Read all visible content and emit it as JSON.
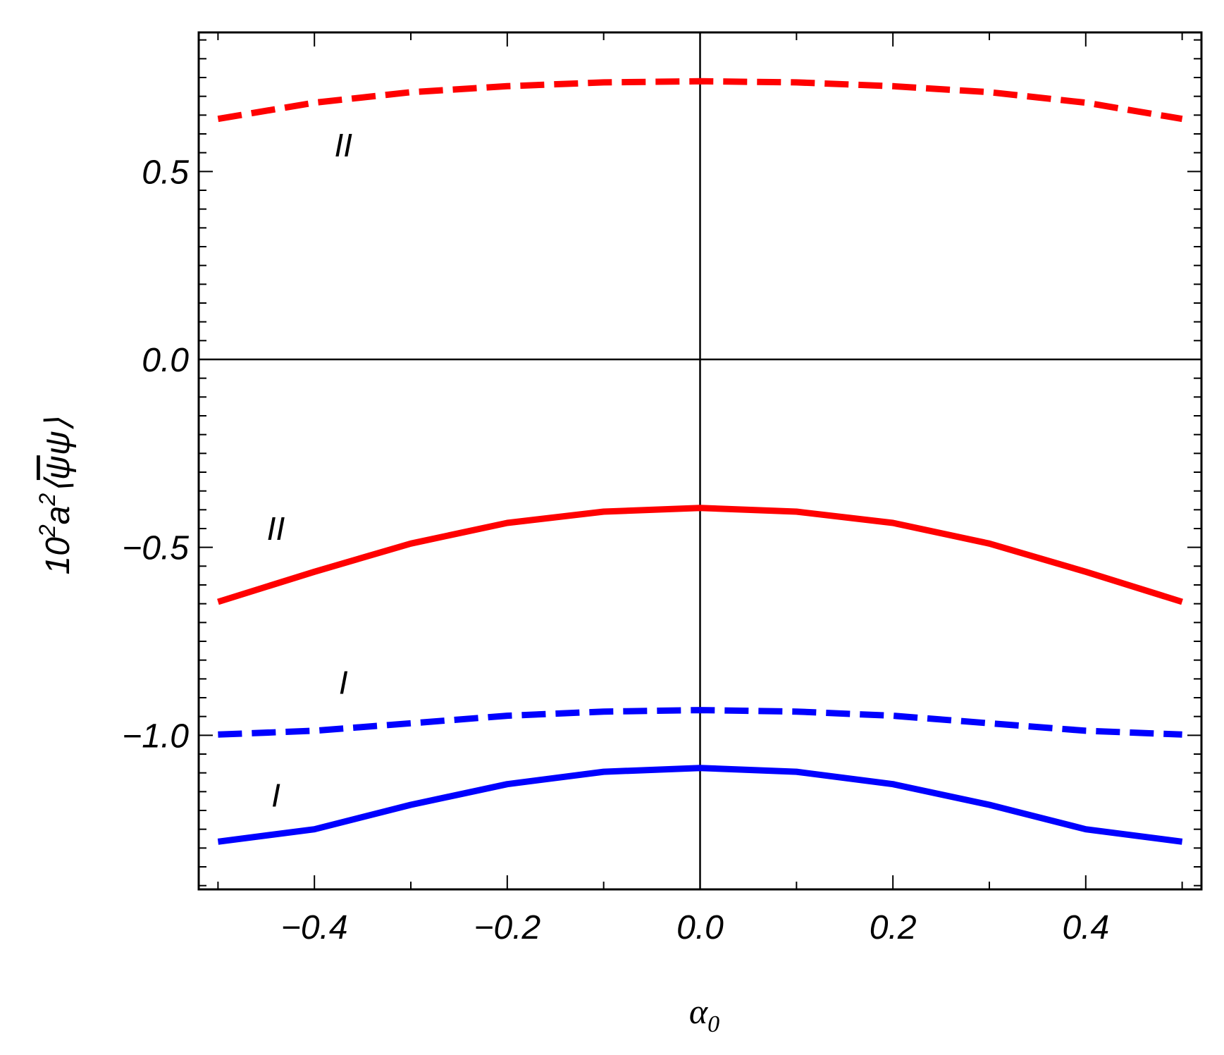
{
  "chart_data": {
    "type": "line",
    "xlabel": "α0",
    "ylabel": {
      "prefix": "10",
      "exp1": "2",
      "mid": "a",
      "exp2": "2",
      "bracket_open": "⟨",
      "psi_bar": "ψ",
      "psi": "ψ",
      "bracket_close": "⟩"
    },
    "xlim": [
      -0.52,
      0.52
    ],
    "ylim": [
      -1.41,
      0.87
    ],
    "x_ticks": [
      {
        "value": -0.4,
        "label": "−0.4"
      },
      {
        "value": -0.2,
        "label": "−0.2"
      },
      {
        "value": 0.0,
        "label": "0.0"
      },
      {
        "value": 0.2,
        "label": "0.2"
      },
      {
        "value": 0.4,
        "label": "0.4"
      }
    ],
    "y_ticks": [
      {
        "value": -1.0,
        "label": "−1.0"
      },
      {
        "value": -0.5,
        "label": "−0.5"
      },
      {
        "value": 0.0,
        "label": "0.0"
      },
      {
        "value": 0.5,
        "label": "0.5"
      }
    ],
    "grid": false,
    "series": [
      {
        "style": "dashed",
        "color": "#ff0000",
        "x": [
          -0.5,
          -0.4,
          -0.3,
          -0.2,
          -0.1,
          0.0,
          0.1,
          0.2,
          0.3,
          0.4,
          0.5
        ],
        "y": [
          0.64,
          0.683,
          0.711,
          0.727,
          0.737,
          0.74,
          0.737,
          0.727,
          0.711,
          0.683,
          0.64
        ]
      },
      {
        "style": "solid",
        "color": "#ff0000",
        "x": [
          -0.5,
          -0.4,
          -0.3,
          -0.2,
          -0.1,
          0.0,
          0.1,
          0.2,
          0.3,
          0.4,
          0.5
        ],
        "y": [
          -0.645,
          -0.565,
          -0.49,
          -0.435,
          -0.405,
          -0.395,
          -0.405,
          -0.435,
          -0.49,
          -0.565,
          -0.645
        ]
      },
      {
        "style": "dashed",
        "color": "#0000ff",
        "x": [
          -0.5,
          -0.4,
          -0.3,
          -0.2,
          -0.1,
          0.0,
          0.1,
          0.2,
          0.3,
          0.4,
          0.5
        ],
        "y": [
          -0.998,
          -0.988,
          -0.968,
          -0.948,
          -0.937,
          -0.933,
          -0.937,
          -0.948,
          -0.968,
          -0.988,
          -0.998
        ]
      },
      {
        "style": "solid",
        "color": "#0000ff",
        "x": [
          -0.5,
          -0.4,
          -0.3,
          -0.2,
          -0.1,
          0.0,
          0.1,
          0.2,
          0.3,
          0.4,
          0.5
        ],
        "y": [
          -1.283,
          -1.25,
          -1.185,
          -1.13,
          -1.097,
          -1.087,
          -1.097,
          -1.13,
          -1.185,
          -1.25,
          -1.283
        ]
      }
    ],
    "annotations": [
      {
        "text": "II",
        "x": -0.37,
        "y": 0.57
      },
      {
        "text": "II",
        "x": -0.44,
        "y": -0.45
      },
      {
        "text": "I",
        "x": -0.37,
        "y": -0.86
      },
      {
        "text": "I",
        "x": -0.44,
        "y": -1.16
      }
    ]
  }
}
